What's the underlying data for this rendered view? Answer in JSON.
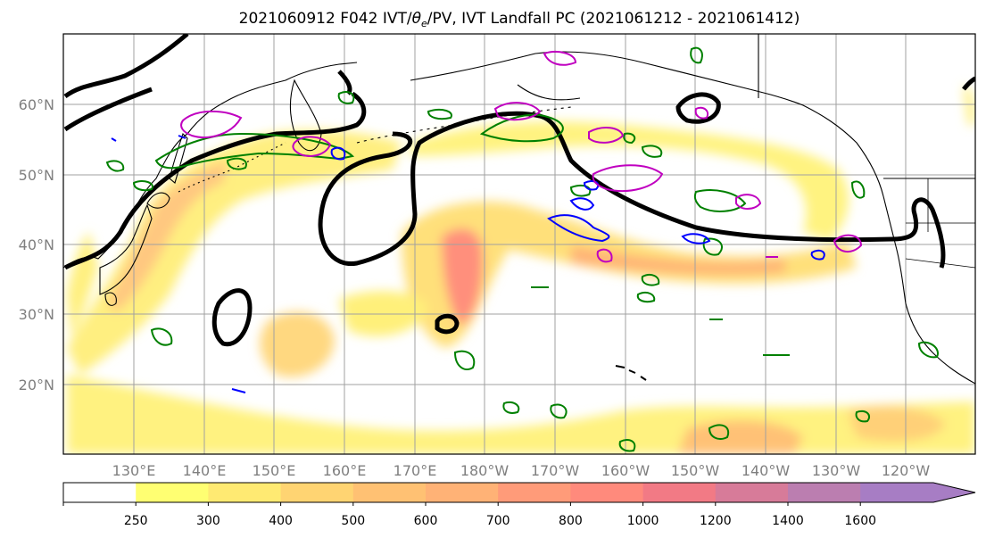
{
  "title": "2021060912 F042 IVT/θe/PV, IVT Landfall PC (2021061212 - 2021061412)",
  "title_parts": {
    "prefix": "2021060912 F042 IVT/",
    "theta": "θ",
    "subscript": "e",
    "suffix": "/PV, IVT Landfall PC (2021061212 - 2021061412)"
  },
  "lat_labels": [
    "60°N",
    "50°N",
    "40°N",
    "30°N",
    "20°N"
  ],
  "lon_labels": [
    "130°E",
    "140°E",
    "150°E",
    "160°E",
    "170°E",
    "180°W",
    "170°W",
    "160°W",
    "150°W",
    "140°W",
    "130°W",
    "120°W"
  ],
  "colorbar": {
    "ticks": [
      "250",
      "300",
      "400",
      "500",
      "600",
      "700",
      "800",
      "1000",
      "1200",
      "1400",
      "1600"
    ],
    "colors": [
      "#ffffff",
      "#ffff72",
      "#ffea72",
      "#ffd472",
      "#ffc173",
      "#ffb276",
      "#ff9b79",
      "#ff8a7c",
      "#f27a85",
      "#d77b99",
      "#bb7eb0",
      "#a77dc4"
    ]
  },
  "contour_colors": {
    "landfall_pc": "#000000",
    "theta_e": "#008000",
    "pv_low": "#0000ff",
    "pv_high": "#c000c0"
  },
  "grid": true
}
